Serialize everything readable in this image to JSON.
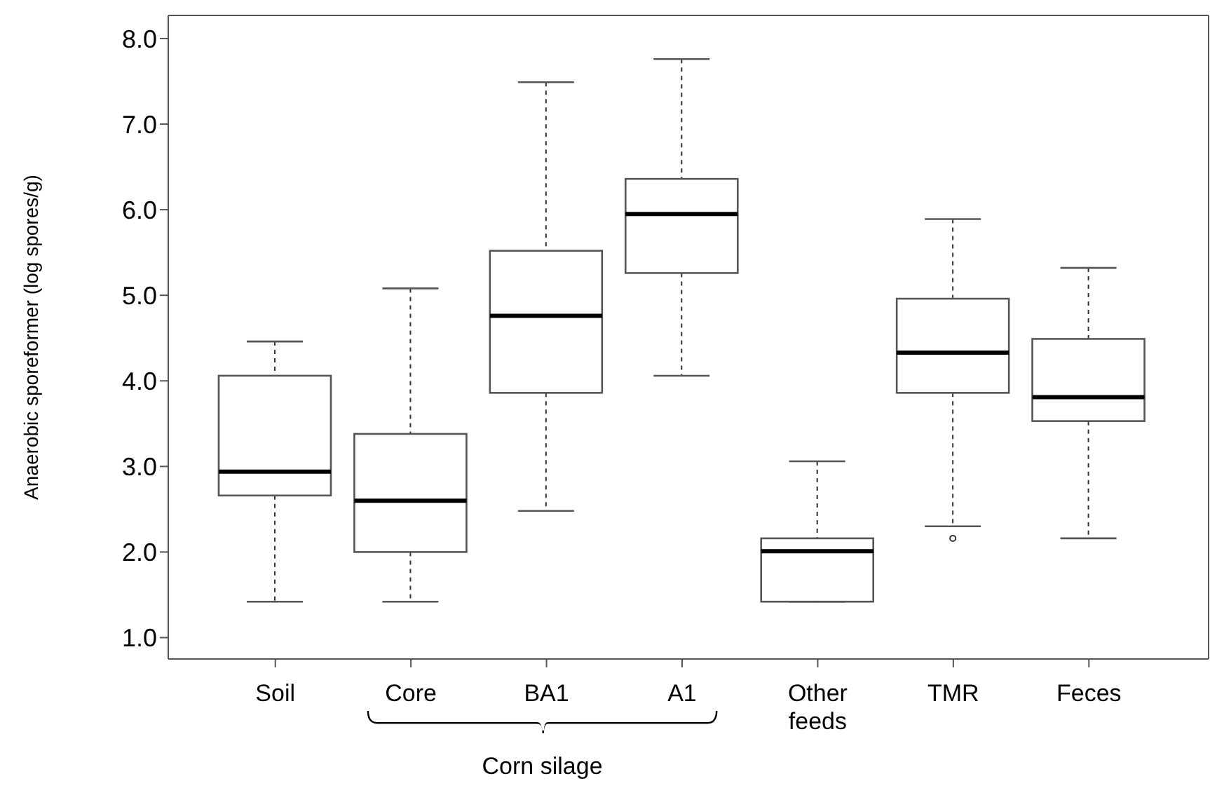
{
  "chart_data": {
    "type": "box",
    "ylabel": "Anaerobic sporeformer (log spores/g)",
    "categories": [
      "Soil",
      "Core",
      "BA1",
      "A1",
      "Other feeds",
      "TMR",
      "Feces"
    ],
    "boxes": [
      {
        "low": 1.42,
        "q1": 2.66,
        "median": 2.94,
        "q3": 4.06,
        "high": 4.46
      },
      {
        "low": 1.42,
        "q1": 2.0,
        "median": 2.6,
        "q3": 3.38,
        "high": 5.08
      },
      {
        "low": 2.48,
        "q1": 3.86,
        "median": 4.76,
        "q3": 5.52,
        "high": 7.49
      },
      {
        "low": 4.06,
        "q1": 5.26,
        "median": 5.95,
        "q3": 6.36,
        "high": 7.76
      },
      {
        "low": 1.42,
        "q1": 1.42,
        "median": 2.01,
        "q3": 2.16,
        "high": 3.06
      },
      {
        "low": 2.3,
        "q1": 3.86,
        "median": 4.33,
        "q3": 4.96,
        "high": 5.89,
        "outliers": [
          2.16
        ]
      },
      {
        "low": 2.16,
        "q1": 3.53,
        "median": 3.81,
        "q3": 4.49,
        "high": 5.32
      }
    ],
    "ylim": [
      0.75,
      8.27
    ],
    "yticks": [
      {
        "value": 1,
        "label": "1.0"
      },
      {
        "value": 2,
        "label": "2.0"
      },
      {
        "value": 3,
        "label": "3.0"
      },
      {
        "value": 4,
        "label": "4.0"
      },
      {
        "value": 5,
        "label": "5.0"
      },
      {
        "value": 6,
        "label": "6.0"
      },
      {
        "value": 7,
        "label": "7.0"
      },
      {
        "value": 8,
        "label": "8.0"
      }
    ],
    "annotations": [
      "Corn silage"
    ]
  }
}
